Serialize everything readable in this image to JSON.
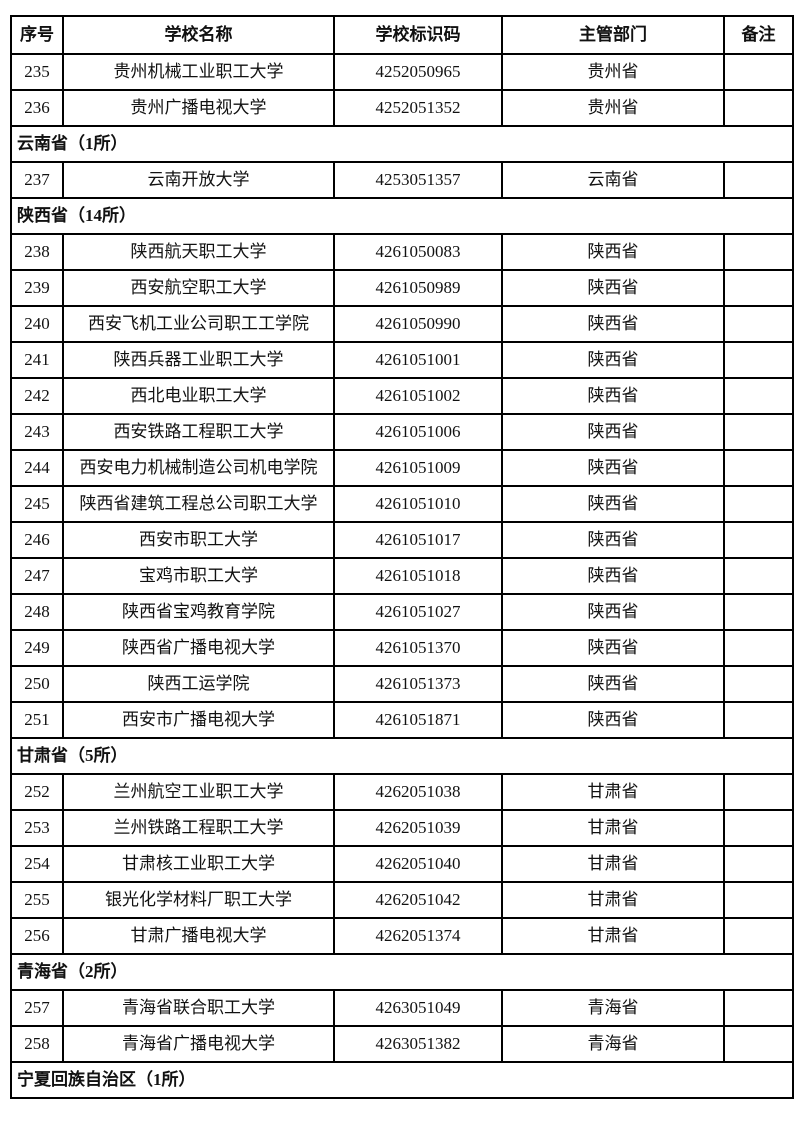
{
  "page": {
    "background_color": "#ffffff",
    "text_color": "#111111",
    "border_color": "#000000"
  },
  "table": {
    "columns": [
      "序号",
      "学校名称",
      "学校标识码",
      "主管部门",
      "备注"
    ],
    "rows": [
      {
        "type": "data",
        "no": "235",
        "name": "贵州机械工业职工大学",
        "code": "4252050965",
        "dept": "贵州省",
        "note": ""
      },
      {
        "type": "data",
        "no": "236",
        "name": "贵州广播电视大学",
        "code": "4252051352",
        "dept": "贵州省",
        "note": ""
      },
      {
        "type": "section",
        "label": "云南省（1所）"
      },
      {
        "type": "data",
        "no": "237",
        "name": "云南开放大学",
        "code": "4253051357",
        "dept": "云南省",
        "note": ""
      },
      {
        "type": "section",
        "label": "陕西省（14所）"
      },
      {
        "type": "data",
        "no": "238",
        "name": "陕西航天职工大学",
        "code": "4261050083",
        "dept": "陕西省",
        "note": ""
      },
      {
        "type": "data",
        "no": "239",
        "name": "西安航空职工大学",
        "code": "4261050989",
        "dept": "陕西省",
        "note": ""
      },
      {
        "type": "data",
        "no": "240",
        "name": "西安飞机工业公司职工工学院",
        "code": "4261050990",
        "dept": "陕西省",
        "note": ""
      },
      {
        "type": "data",
        "no": "241",
        "name": "陕西兵器工业职工大学",
        "code": "4261051001",
        "dept": "陕西省",
        "note": ""
      },
      {
        "type": "data",
        "no": "242",
        "name": "西北电业职工大学",
        "code": "4261051002",
        "dept": "陕西省",
        "note": ""
      },
      {
        "type": "data",
        "no": "243",
        "name": "西安铁路工程职工大学",
        "code": "4261051006",
        "dept": "陕西省",
        "note": ""
      },
      {
        "type": "data",
        "no": "244",
        "name": "西安电力机械制造公司机电学院",
        "code": "4261051009",
        "dept": "陕西省",
        "note": ""
      },
      {
        "type": "data",
        "no": "245",
        "name": "陕西省建筑工程总公司职工大学",
        "code": "4261051010",
        "dept": "陕西省",
        "note": ""
      },
      {
        "type": "data",
        "no": "246",
        "name": "西安市职工大学",
        "code": "4261051017",
        "dept": "陕西省",
        "note": ""
      },
      {
        "type": "data",
        "no": "247",
        "name": "宝鸡市职工大学",
        "code": "4261051018",
        "dept": "陕西省",
        "note": ""
      },
      {
        "type": "data",
        "no": "248",
        "name": "陕西省宝鸡教育学院",
        "code": "4261051027",
        "dept": "陕西省",
        "note": ""
      },
      {
        "type": "data",
        "no": "249",
        "name": "陕西省广播电视大学",
        "code": "4261051370",
        "dept": "陕西省",
        "note": ""
      },
      {
        "type": "data",
        "no": "250",
        "name": "陕西工运学院",
        "code": "4261051373",
        "dept": "陕西省",
        "note": ""
      },
      {
        "type": "data",
        "no": "251",
        "name": "西安市广播电视大学",
        "code": "4261051871",
        "dept": "陕西省",
        "note": ""
      },
      {
        "type": "section",
        "label": "甘肃省（5所）"
      },
      {
        "type": "data",
        "no": "252",
        "name": "兰州航空工业职工大学",
        "code": "4262051038",
        "dept": "甘肃省",
        "note": ""
      },
      {
        "type": "data",
        "no": "253",
        "name": "兰州铁路工程职工大学",
        "code": "4262051039",
        "dept": "甘肃省",
        "note": ""
      },
      {
        "type": "data",
        "no": "254",
        "name": "甘肃核工业职工大学",
        "code": "4262051040",
        "dept": "甘肃省",
        "note": ""
      },
      {
        "type": "data",
        "no": "255",
        "name": "银光化学材料厂职工大学",
        "code": "4262051042",
        "dept": "甘肃省",
        "note": ""
      },
      {
        "type": "data",
        "no": "256",
        "name": "甘肃广播电视大学",
        "code": "4262051374",
        "dept": "甘肃省",
        "note": ""
      },
      {
        "type": "section",
        "label": "青海省（2所）"
      },
      {
        "type": "data",
        "no": "257",
        "name": "青海省联合职工大学",
        "code": "4263051049",
        "dept": "青海省",
        "note": ""
      },
      {
        "type": "data",
        "no": "258",
        "name": "青海省广播电视大学",
        "code": "4263051382",
        "dept": "青海省",
        "note": ""
      },
      {
        "type": "section",
        "label": "宁夏回族自治区（1所）"
      }
    ]
  }
}
